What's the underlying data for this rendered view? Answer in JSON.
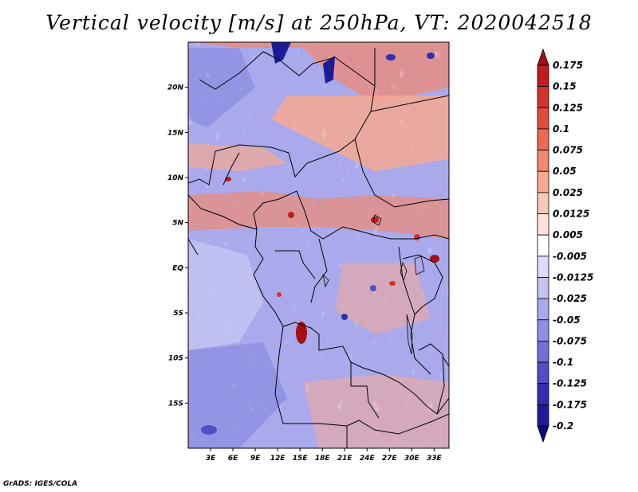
{
  "title": "Vertical velocity [m/s] at 250hPa, VT: 2020042518",
  "credit": "GrADS: IGES/COLA",
  "map": {
    "lat_labels": [
      "20N",
      "15N",
      "10N",
      "5N",
      "EQ",
      "5S",
      "10S",
      "15S"
    ],
    "lat_values": [
      20,
      15,
      10,
      5,
      0,
      -5,
      -10,
      -15
    ],
    "lon_labels": [
      "3E",
      "6E",
      "9E",
      "12E",
      "15E",
      "18E",
      "21E",
      "24E",
      "27E",
      "30E",
      "33E"
    ],
    "lon_values": [
      3,
      6,
      9,
      12,
      15,
      18,
      21,
      24,
      27,
      30,
      33
    ],
    "lon_range": [
      0,
      35
    ],
    "lat_range": [
      -20,
      25
    ]
  },
  "colorbar": {
    "labels": [
      "0.175",
      "0.15",
      "0.125",
      "0.1",
      "0.075",
      "0.05",
      "0.025",
      "0.0125",
      "0.005",
      "-0.005",
      "-0.0125",
      "-0.025",
      "-0.05",
      "-0.075",
      "-0.1",
      "-0.125",
      "-0.175",
      "-0.2"
    ],
    "colors": [
      "#a50f15",
      "#c11b1f",
      "#d4322c",
      "#e04d3f",
      "#ea6a56",
      "#f08a74",
      "#f5a993",
      "#f9c7b6",
      "#fde3d9",
      "#ffffff",
      "#dcdcfa",
      "#c4c4f4",
      "#a9a9ec",
      "#8e8ee2",
      "#7070d6",
      "#5050c6",
      "#3030b0",
      "#1c1c96",
      "#0c0c80"
    ]
  }
}
